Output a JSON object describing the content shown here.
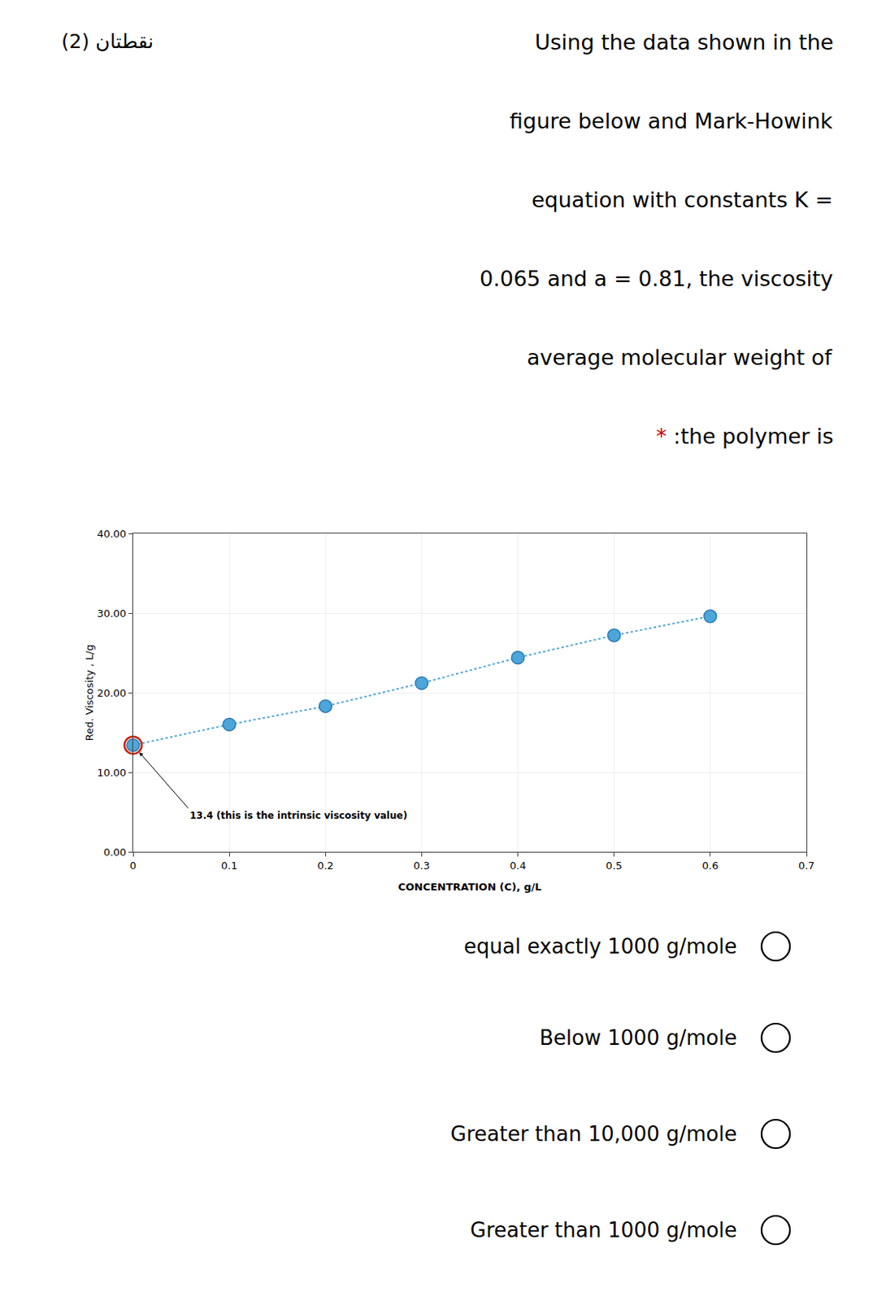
{
  "chart_data": {
    "type": "line",
    "subtitle": "نقطتان (2)",
    "title": [
      "Using the data shown in the",
      "figure below and Mark-Howink",
      "equation with constants K =",
      "0.065 and a = 0.81, the viscosity",
      "average molecular weight of",
      ":the polymer is"
    ],
    "title_mark": {
      "text": "*",
      "color": "#cc0000"
    },
    "x": [
      0.0,
      0.1,
      0.2,
      0.3,
      0.4,
      0.5,
      0.6
    ],
    "values": [
      13.4,
      16.0,
      18.3,
      21.2,
      24.4,
      27.2,
      29.6
    ],
    "color": "#4da6d9",
    "marker": "circle",
    "line_style": "dotted",
    "xlabel": "CONCENTRATION (C), g/L",
    "ylabel": "Red. Viscosity , L/g",
    "xlim": [
      0,
      0.7
    ],
    "ylim": [
      0.0,
      40.0
    ],
    "xticks": [
      0,
      0.1,
      0.2,
      0.3,
      0.4,
      0.5,
      0.6,
      0.7
    ],
    "yticks": [
      {
        "value": 0.0,
        "label": "0.00"
      },
      {
        "value": 10.0,
        "label": "10.00"
      },
      {
        "value": 20.0,
        "label": "20.00"
      },
      {
        "value": 30.0,
        "label": "30.00"
      },
      {
        "value": 40.0,
        "label": "40.00"
      }
    ],
    "grid": true,
    "annotations": [
      {
        "text": "13.4 (this is the intrinsic viscosity value)",
        "x": 0.0,
        "y": 13.4,
        "color": "#cc2200"
      }
    ],
    "options": [
      "equal exactly 1000 g/mole",
      "Below 1000 g/mole",
      "Greater than 10,000 g/mole",
      "Greater than 1000 g/mole"
    ]
  }
}
